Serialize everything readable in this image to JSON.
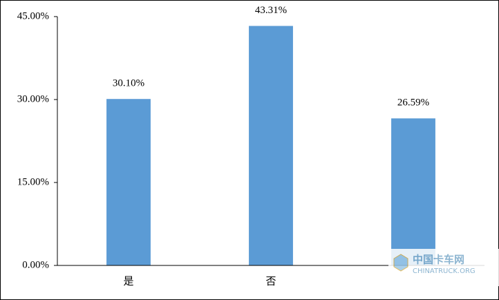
{
  "chart_data": {
    "type": "bar",
    "categories": [
      "是",
      "否",
      null
    ],
    "values": [
      30.1,
      43.31,
      26.59
    ],
    "value_labels": [
      "30.10%",
      "43.31%",
      "26.59%"
    ],
    "color": "#5b9bd5",
    "ylim": [
      0,
      45
    ],
    "yticks": [
      {
        "value": 0,
        "label": "0.00%"
      },
      {
        "value": 15,
        "label": "15.00%"
      },
      {
        "value": 30,
        "label": "30.00%"
      },
      {
        "value": 45,
        "label": "45.00%"
      }
    ],
    "grid": false,
    "watermark": {
      "title": "中国卡车网",
      "subtitle": "CHINATRUCK.ORG"
    }
  }
}
